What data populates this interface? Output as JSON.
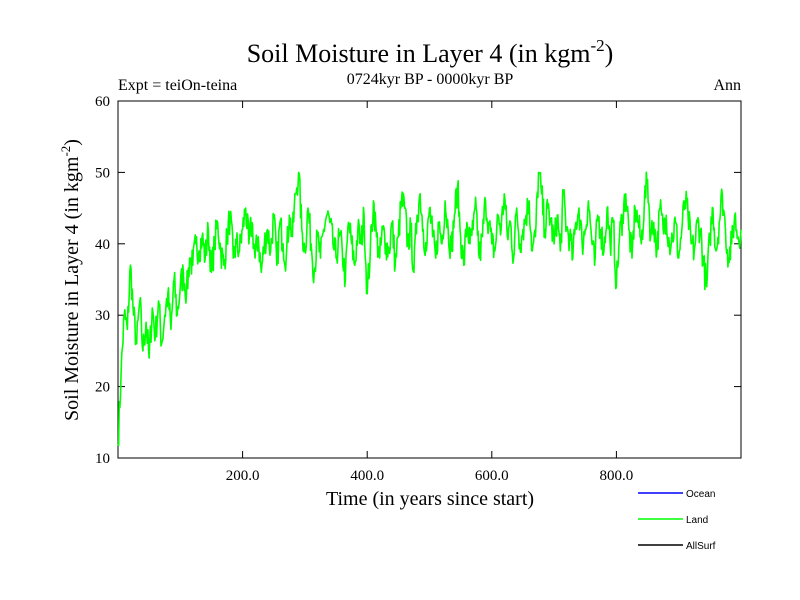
{
  "chart_data": {
    "type": "line",
    "title": "Soil Moisture in Layer 4 (in kgm",
    "title_superscript": "-2",
    "title_close": ")",
    "subtitle": "0724kyr BP - 0000kyr BP",
    "experiment_label": "Expt = teiOn-teina",
    "season_label": "Ann",
    "xlabel": "Time (in years since start)",
    "ylabel": "Soil Moisture in Layer 4 (in kgm",
    "ylabel_superscript": "-2",
    "ylabel_close": ")",
    "xlim": [
      0,
      1000
    ],
    "ylim": [
      10,
      60
    ],
    "x_ticks": [
      200,
      400,
      600,
      800
    ],
    "x_tick_labels": [
      "200.0",
      "400.0",
      "600.0",
      "800.0"
    ],
    "y_ticks": [
      10,
      20,
      30,
      40,
      50,
      60
    ],
    "y_tick_labels": [
      "10",
      "20",
      "30",
      "40",
      "50",
      "60"
    ],
    "grid": false,
    "legend_position": "bottom-right",
    "legend": [
      {
        "name": "Ocean",
        "color": "#0000ff"
      },
      {
        "name": "Land",
        "color": "#00ff00"
      },
      {
        "name": "AllSurf",
        "color": "#000000"
      }
    ],
    "series": [
      {
        "name": "Land",
        "color": "#00ff00",
        "x": [
          0,
          5,
          10,
          15,
          20,
          25,
          30,
          35,
          40,
          45,
          50,
          55,
          60,
          65,
          70,
          75,
          80,
          85,
          90,
          95,
          100,
          105,
          110,
          115,
          120,
          125,
          130,
          135,
          140,
          145,
          150,
          155,
          160,
          165,
          170,
          175,
          180,
          185,
          190,
          195,
          200,
          205,
          210,
          215,
          220,
          225,
          230,
          235,
          240,
          245,
          250,
          255,
          260,
          265,
          270,
          275,
          280,
          285,
          290,
          295,
          300,
          305,
          310,
          315,
          320,
          325,
          330,
          335,
          340,
          345,
          350,
          355,
          360,
          365,
          370,
          375,
          380,
          385,
          390,
          395,
          400,
          405,
          410,
          415,
          420,
          425,
          430,
          435,
          440,
          445,
          450,
          455,
          460,
          465,
          470,
          475,
          480,
          485,
          490,
          495,
          500,
          505,
          510,
          515,
          520,
          525,
          530,
          535,
          540,
          545,
          550,
          555,
          560,
          565,
          570,
          575,
          580,
          585,
          590,
          595,
          600,
          605,
          610,
          615,
          620,
          625,
          630,
          635,
          640,
          645,
          650,
          655,
          660,
          665,
          670,
          675,
          680,
          685,
          690,
          695,
          700,
          705,
          710,
          715,
          720,
          725,
          730,
          735,
          740,
          745,
          750,
          755,
          760,
          765,
          770,
          775,
          780,
          785,
          790,
          795,
          800,
          805,
          810,
          815,
          820,
          825,
          830,
          835,
          840,
          845,
          850,
          855,
          860,
          865,
          870,
          875,
          880,
          885,
          890,
          895,
          900,
          905,
          910,
          915,
          920,
          925,
          930,
          935,
          940,
          945,
          950,
          955,
          960,
          965,
          970,
          975,
          980,
          985,
          990,
          995,
          1000
        ],
        "values": [
          12,
          22,
          30,
          28,
          37,
          30,
          26,
          32,
          25,
          29,
          24,
          31,
          27,
          32,
          26,
          30,
          33,
          28,
          35,
          30,
          34,
          36,
          33,
          38,
          37,
          40,
          39,
          41,
          38,
          42,
          36,
          40,
          43,
          39,
          37,
          41,
          44,
          38,
          40,
          39,
          42,
          45,
          40,
          43,
          38,
          41,
          36,
          40,
          42,
          39,
          44,
          37,
          43,
          40,
          38,
          44,
          41,
          47,
          50,
          42,
          39,
          45,
          40,
          36,
          41,
          38,
          42,
          44,
          43,
          40,
          38,
          41,
          39,
          35,
          43,
          40,
          37,
          42,
          40,
          44,
          33,
          39,
          46,
          41,
          38,
          42,
          40,
          39,
          43,
          37,
          41,
          46,
          45,
          40,
          42,
          36,
          44,
          47,
          42,
          39,
          45,
          41,
          38,
          43,
          40,
          46,
          42,
          39,
          44,
          48,
          41,
          37,
          43,
          40,
          42,
          45,
          38,
          41,
          46,
          43,
          40,
          39,
          44,
          42,
          47,
          41,
          43,
          38,
          45,
          40,
          42,
          44,
          46,
          39,
          41,
          50,
          47,
          42,
          45,
          43,
          40,
          44,
          39,
          47,
          42,
          41,
          38,
          43,
          45,
          40,
          42,
          46,
          41,
          37,
          44,
          42,
          39,
          45,
          40,
          43,
          34,
          41,
          44,
          47,
          42,
          38,
          45,
          43,
          40,
          46,
          49,
          41,
          43,
          39,
          45,
          42,
          44,
          40,
          41,
          43,
          38,
          42,
          46,
          44,
          40,
          39,
          43,
          42,
          37,
          34,
          41,
          45,
          39,
          43,
          47,
          42,
          38,
          40,
          44,
          41,
          42
        ]
      }
    ]
  }
}
